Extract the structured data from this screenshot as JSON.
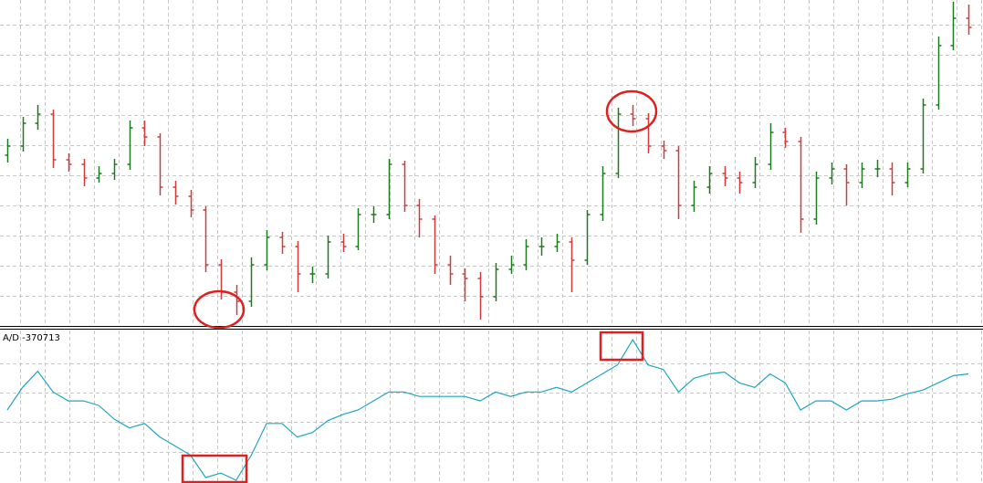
{
  "chart_data": [
    {
      "type": "ohlc",
      "up_color": "#1e7a1e",
      "down_color": "#d03c3c",
      "open": [
        190,
        200,
        225,
        235,
        185,
        180,
        165,
        170,
        180,
        220,
        210,
        155,
        145,
        130,
        70,
        40,
        30,
        70,
        100,
        90,
        60,
        60,
        95,
        90,
        125,
        125,
        180,
        135,
        120,
        70,
        60,
        55,
        35,
        65,
        70,
        90,
        90,
        95,
        75,
        125,
        170,
        235,
        230,
        200,
        195,
        135,
        155,
        170,
        165,
        160,
        180,
        215,
        205,
        120,
        165,
        175,
        160,
        175,
        175,
        160,
        175,
        245,
        310,
        340
      ],
      "high": [
        208,
        232,
        245,
        240,
        192,
        186,
        178,
        186,
        228,
        228,
        214,
        162,
        152,
        134,
        76,
        48,
        78,
        108,
        106,
        96,
        68,
        102,
        104,
        132,
        134,
        186,
        184,
        142,
        124,
        80,
        66,
        62,
        72,
        80,
        98,
        100,
        104,
        100,
        130,
        178,
        242,
        245,
        236,
        206,
        200,
        162,
        178,
        178,
        172,
        188,
        225,
        220,
        210,
        172,
        182,
        180,
        182,
        185,
        182,
        182,
        252,
        320,
        358,
        355
      ],
      "low": [
        182,
        194,
        218,
        176,
        172,
        156,
        160,
        163,
        174,
        200,
        146,
        136,
        122,
        62,
        32,
        15,
        24,
        64,
        82,
        40,
        50,
        55,
        84,
        86,
        116,
        120,
        128,
        100,
        60,
        48,
        30,
        10,
        30,
        60,
        64,
        80,
        84,
        40,
        70,
        118,
        165,
        222,
        192,
        186,
        120,
        128,
        148,
        156,
        148,
        154,
        174,
        198,
        105,
        114,
        158,
        135,
        154,
        166,
        146,
        155,
        170,
        240,
        305,
        322
      ],
      "close": [
        200,
        225,
        235,
        185,
        180,
        165,
        170,
        180,
        220,
        210,
        155,
        145,
        130,
        70,
        40,
        30,
        70,
        100,
        90,
        60,
        60,
        95,
        90,
        125,
        125,
        180,
        135,
        120,
        70,
        60,
        55,
        35,
        65,
        70,
        90,
        90,
        95,
        75,
        125,
        170,
        235,
        230,
        200,
        195,
        135,
        155,
        170,
        165,
        160,
        180,
        215,
        205,
        120,
        165,
        175,
        160,
        175,
        175,
        160,
        175,
        245,
        310,
        340,
        330
      ]
    },
    {
      "type": "line",
      "title": "A/D -370713",
      "color": "#1fa6bf",
      "values": [
        150,
        175,
        193,
        170,
        160,
        160,
        155,
        140,
        130,
        135,
        120,
        110,
        100,
        75,
        80,
        72,
        100,
        135,
        135,
        120,
        125,
        138,
        145,
        150,
        160,
        170,
        170,
        165,
        165,
        165,
        165,
        160,
        170,
        165,
        170,
        170,
        175,
        170,
        180,
        190,
        200,
        228,
        200,
        195,
        170,
        185,
        190,
        192,
        180,
        175,
        190,
        180,
        150,
        160,
        160,
        150,
        160,
        160,
        162,
        168,
        172,
        180,
        188,
        190
      ]
    }
  ]
}
